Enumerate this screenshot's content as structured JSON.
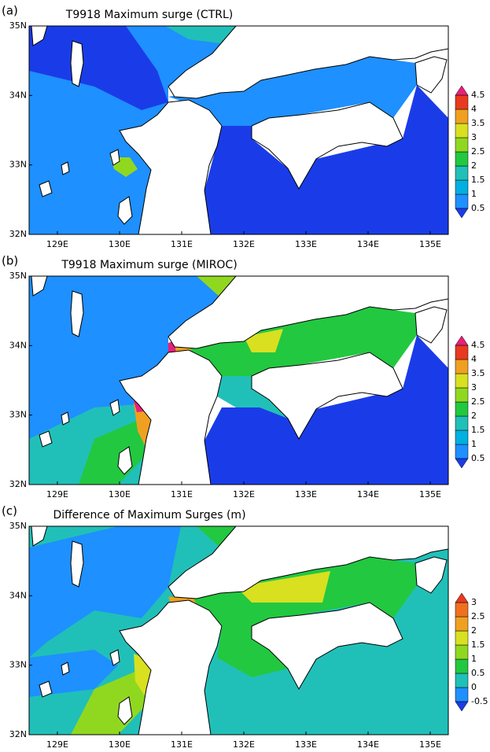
{
  "panels": [
    {
      "label": "(a)",
      "title": "T9918 Maximum surge (CTRL)",
      "yticks": [
        "35N",
        "34N",
        "33N",
        "32N"
      ],
      "xticks": [
        "129E",
        "130E",
        "131E",
        "132E",
        "133E",
        "134E",
        "135E"
      ],
      "colorbar": [
        "4.5",
        "4",
        "3.5",
        "3",
        "2.5",
        "2",
        "1.5",
        "1",
        "0.5"
      ]
    },
    {
      "label": "(b)",
      "title": "T9918 Maximum surge (MIROC)",
      "yticks": [
        "35N",
        "34N",
        "33N",
        "32N"
      ],
      "xticks": [
        "129E",
        "130E",
        "131E",
        "132E",
        "133E",
        "134E",
        "135E"
      ],
      "colorbar": [
        "4.5",
        "4",
        "3.5",
        "3",
        "2.5",
        "2",
        "1.5",
        "1",
        "0.5"
      ]
    },
    {
      "label": "(c)",
      "title": "Difference of Maximum Surges (m)",
      "yticks": [
        "35N",
        "34N",
        "33N",
        "32N"
      ],
      "xticks": [
        "129E",
        "130E",
        "131E",
        "132E",
        "133E",
        "134E",
        "135E"
      ],
      "colorbar": [
        "3",
        "2.5",
        "2",
        "1.5",
        "1",
        "0.5",
        "0",
        "-0.5"
      ]
    }
  ]
}
